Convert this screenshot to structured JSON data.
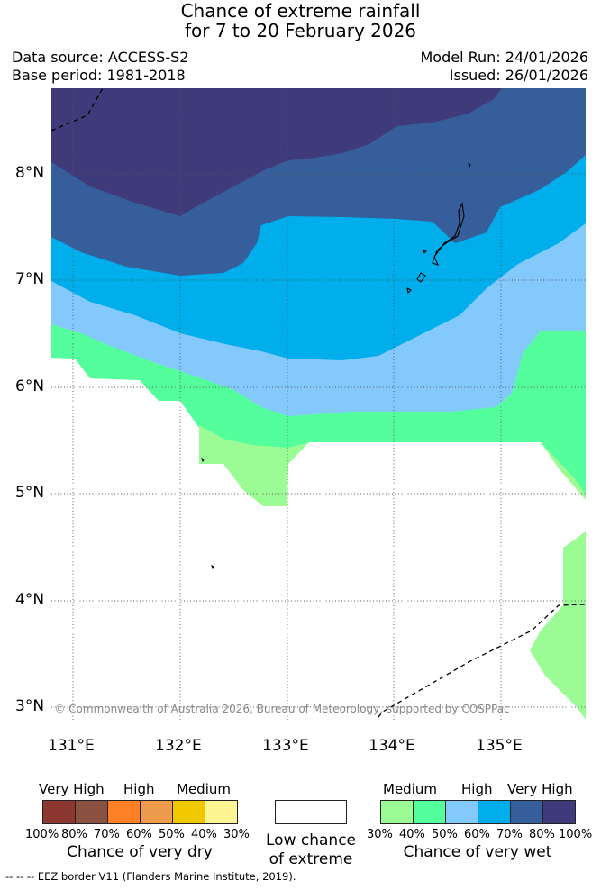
{
  "title": {
    "line1": "Chance of extreme rainfall",
    "line2": "for 7 to 20 February 2026"
  },
  "info": {
    "data_source": "Data source: ACCESS-S2",
    "base_period": "Base period: 1981-2018",
    "model_run": "Model Run: 24/01/2026",
    "issued": "Issued: 26/01/2026"
  },
  "map": {
    "lat_ticks": [
      "8°N",
      "7°N",
      "6°N",
      "5°N",
      "4°N",
      "3°N"
    ],
    "lon_ticks": [
      "131°E",
      "132°E",
      "133°E",
      "134°E",
      "135°E"
    ],
    "copyright": "© Commonwealth of Australia 2026, Bureau of Meteorology, supported by COSPPac",
    "colors": {
      "very_high_wet": "#3f3b7a",
      "very_high_wet_80": "#365e9b",
      "high_wet_70": "#00aeec",
      "high_wet_60": "#84c9fb",
      "medium_wet_50": "#55fe9d",
      "medium_wet_40": "#9bfb94"
    }
  },
  "legend": {
    "dry": {
      "labels": [
        "Very High",
        "High",
        "Medium"
      ],
      "pcts": [
        "100%",
        "80%",
        "70%",
        "60%",
        "50%",
        "40%",
        "30%"
      ],
      "colors": [
        "#8c3830",
        "#8a5040",
        "#fd7f26",
        "#ed9b4c",
        "#f0c800",
        "#fdf493"
      ],
      "title": "Chance of very dry"
    },
    "low": {
      "line1": "Low chance",
      "line2": "of extreme",
      "color": "#ffffff"
    },
    "wet": {
      "labels": [
        "Medium",
        "High",
        "Very High"
      ],
      "pcts": [
        "30%",
        "40%",
        "50%",
        "60%",
        "70%",
        "80%",
        "100%"
      ],
      "colors": [
        "#9bfb94",
        "#55fe9d",
        "#84c9fb",
        "#00aeec",
        "#365e9b",
        "#3f3b7a"
      ],
      "title": "Chance of very wet"
    }
  },
  "footer": {
    "eez": "--  --  -- EEZ border V11 (Flanders Marine Institute, 2019)."
  }
}
